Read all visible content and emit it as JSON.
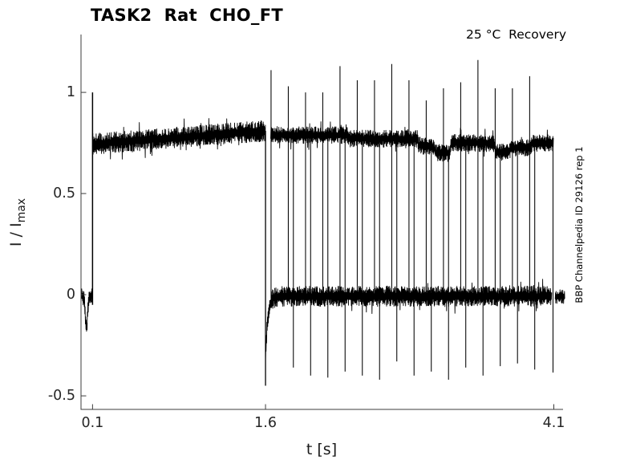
{
  "figure": {
    "title": "TASK2  Rat  CHO_FT",
    "annotation_top_right": "25 °C  Recovery",
    "right_side_label": "BBP Channelpedia ID 29126 rep 1",
    "ylabel_main": "I / I",
    "ylabel_sub": "max",
    "background_color": "#ffffff",
    "trace_color": "#000000",
    "axis_color": "#3c3c3c",
    "tick_label_color": "#262626"
  },
  "chart_data": {
    "type": "line",
    "title": "TASK2 Rat CHO_FT",
    "subtitle": "25 °C Recovery",
    "xlabel": "t [s]",
    "ylabel": "I / I_max",
    "x_ticks": [
      0.1,
      1.6,
      4.1
    ],
    "y_ticks": [
      -0.5,
      0,
      0.5,
      1
    ],
    "xlim": [
      0,
      4.18
    ],
    "ylim": [
      -0.567,
      1.286
    ],
    "grid": false,
    "legend": null,
    "description": "Normalized current trace (recovery-from-inactivation protocol, overlaid sweeps): conditioning pulse 0.1-1.6 s at ~0.75-0.81 of Imax, then brief test pulses every ~0.15 s; capacitive up-spikes to ~1.0-1.16 and repolarization down-spikes to ~ -0.33..-0.43; baseline at 0.",
    "protocol": {
      "noise_seed": 1234,
      "pre_baseline": {
        "t_start": 0.004,
        "t_end": 0.1,
        "level": -0.008,
        "half_width": 0.04,
        "glitch_t": 0.047,
        "glitch_min": -0.15
      },
      "conditioning_pulse": {
        "t_start": 0.1,
        "t_end": 1.6,
        "level_start": 0.745,
        "level_end": 0.81,
        "half_width": 0.052,
        "onset_peak": 1.0,
        "offset_min": -0.45
      },
      "post_baseline": {
        "t_start": 1.6,
        "t_end": 4.083,
        "level": -0.008,
        "half_width": 0.05,
        "undershoot_amp": -0.3,
        "undershoot_tau": 0.02
      },
      "tail_baseline": {
        "t_start": 4.112,
        "t_end": 4.195,
        "level": -0.01,
        "half_width": 0.035
      },
      "recovery_band_half_width": 0.042,
      "recovery_band_segments": [
        [
          1.645,
          0.79
        ],
        [
          2.315,
          0.788
        ],
        [
          2.325,
          0.772
        ],
        [
          2.918,
          0.77
        ],
        [
          2.928,
          0.738
        ],
        [
          3.062,
          0.73
        ],
        [
          3.072,
          0.703
        ],
        [
          3.2,
          0.7
        ],
        [
          3.212,
          0.752
        ],
        [
          3.585,
          0.748
        ],
        [
          3.598,
          0.7
        ],
        [
          3.72,
          0.714
        ],
        [
          3.732,
          0.726
        ],
        [
          3.898,
          0.728
        ],
        [
          3.91,
          0.748
        ],
        [
          4.098,
          0.752
        ]
      ],
      "test_pulse_onsets": [
        1.648,
        1.7975,
        1.947,
        2.0965,
        2.246,
        2.3955,
        2.545,
        2.6945,
        2.844,
        2.9935,
        3.143,
        3.2925,
        3.442,
        3.5915,
        3.741,
        3.8905
      ],
      "test_pulse_peaks": [
        1.11,
        1.03,
        1.0,
        1.0,
        1.13,
        1.06,
        1.06,
        1.14,
        1.06,
        0.96,
        1.02,
        1.05,
        1.16,
        1.02,
        1.02,
        1.08
      ],
      "repolarization_times": [
        1.8415,
        1.991,
        2.1405,
        2.29,
        2.4395,
        2.589,
        2.7385,
        2.888,
        3.0375,
        3.187,
        3.3365,
        3.486,
        3.6355,
        3.785,
        3.9345,
        4.093
      ],
      "repolarization_minima": [
        -0.36,
        -0.4,
        -0.41,
        -0.38,
        -0.4,
        -0.42,
        -0.33,
        -0.4,
        -0.38,
        -0.42,
        -0.36,
        -0.4,
        -0.353,
        -0.34,
        -0.37,
        -0.385
      ]
    }
  }
}
